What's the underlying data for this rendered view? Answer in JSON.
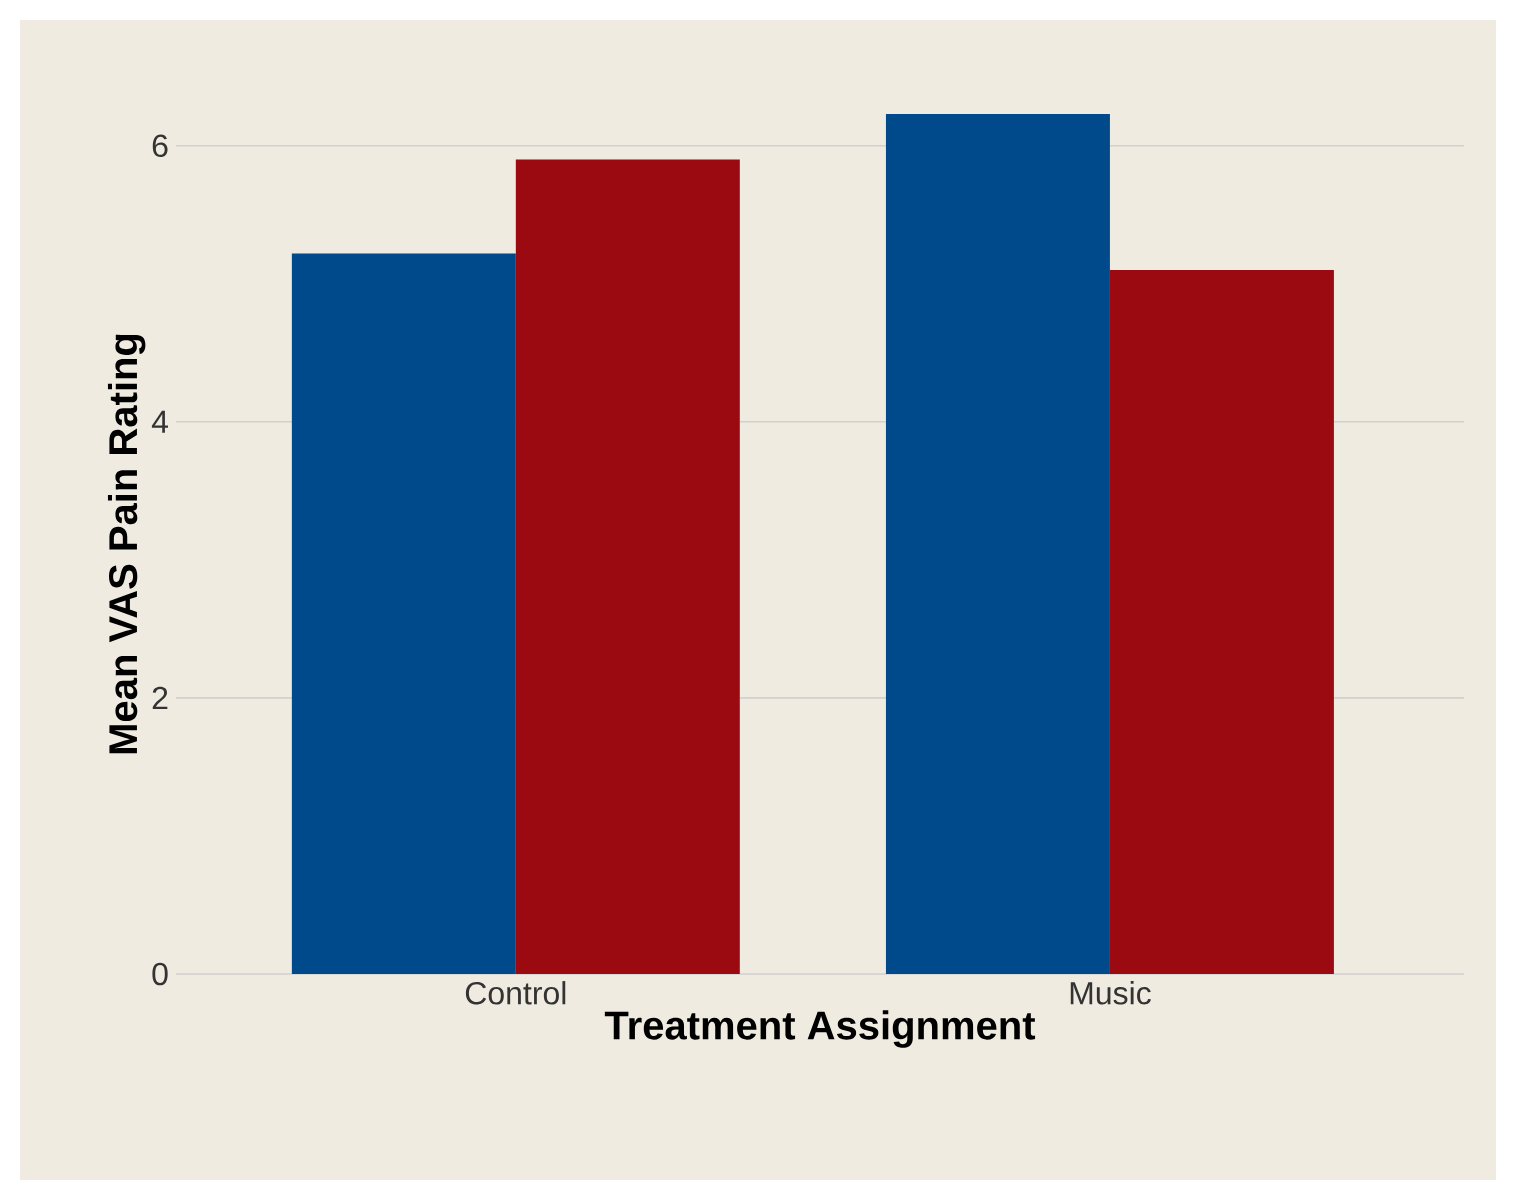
{
  "chart_data": {
    "type": "bar",
    "xlabel": "Treatment Assignment",
    "ylabel": "Mean VAS Pain Rating",
    "categories": [
      "Control",
      "Music"
    ],
    "series": [
      {
        "color": "#004a8c",
        "values": [
          5.22,
          6.23
        ]
      },
      {
        "color": "#9b0a10",
        "values": [
          5.9,
          5.1
        ]
      }
    ],
    "ylim": [
      0,
      6.23
    ],
    "yticks": [
      0,
      2,
      4,
      6
    ],
    "grid": "y"
  }
}
